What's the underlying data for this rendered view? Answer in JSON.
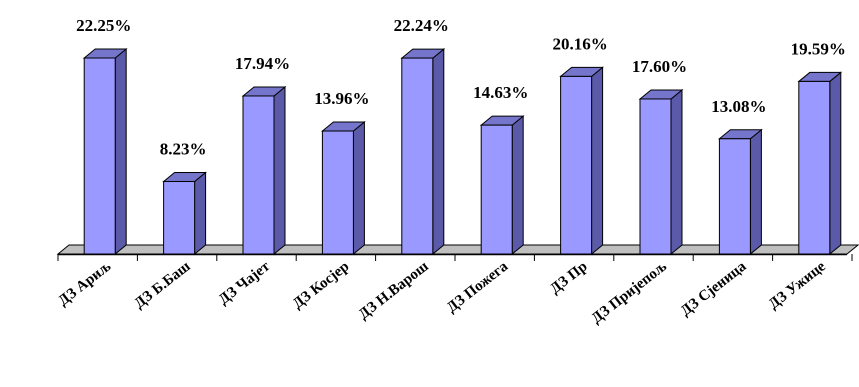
{
  "chart_data": {
    "type": "bar",
    "categories": [
      "ДЗ Ариљ",
      "ДЗ Б.Баш",
      "ДЗ Чајет",
      "ДЗ Косјер",
      "ДЗ Н.Варош",
      "ДЗ Пожега",
      "ДЗ Пр",
      "ДЗ Пријепољ",
      "ДЗ Сјеница",
      "ДЗ Ужице"
    ],
    "values": [
      22.25,
      8.23,
      17.94,
      13.96,
      22.24,
      14.63,
      20.16,
      17.6,
      13.08,
      19.59
    ],
    "labels": [
      "22.25%",
      "8.23%",
      "17.94%",
      "13.96%",
      "22.24%",
      "14.63%",
      "20.16%",
      "17.60%",
      "13.08%",
      "19.59%"
    ],
    "title": "",
    "xlabel": "",
    "ylabel": "",
    "ylim": [
      0,
      22.25
    ],
    "grid": false,
    "legend": "none",
    "three_d": true,
    "colors": {
      "bar_front": "#9999ff",
      "bar_side": "#5a5aa8",
      "bar_top": "#7575cc",
      "outline": "#000000",
      "floor": "#bfbfbf"
    }
  }
}
